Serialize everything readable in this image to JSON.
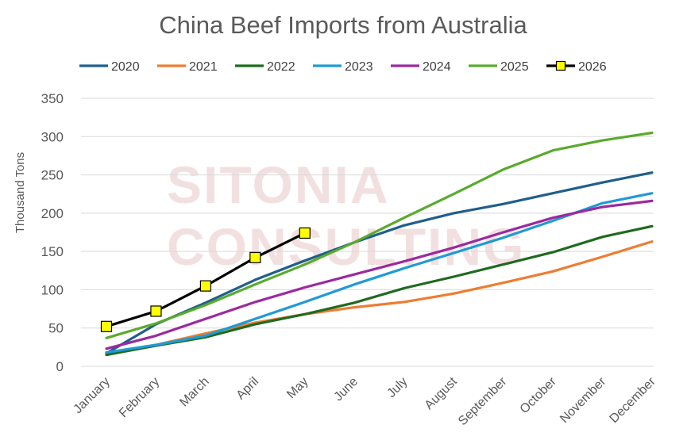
{
  "chart_data": {
    "type": "line",
    "title": "China Beef Imports from Australia",
    "ylabel": "Thousand Tons",
    "xlabel": "",
    "ylim": [
      0,
      350
    ],
    "yticks": [
      0,
      50,
      100,
      150,
      200,
      250,
      300,
      350
    ],
    "grid": true,
    "legend_position": "top",
    "watermark": [
      "SITONIA",
      "CONSULTING"
    ],
    "categories": [
      "January",
      "February",
      "March",
      "April",
      "May",
      "June",
      "July",
      "August",
      "September",
      "October",
      "November",
      "December"
    ],
    "series": [
      {
        "name": "2020",
        "color": "#1f5f8b",
        "marker": false,
        "values": [
          17,
          55,
          83,
          113,
          138,
          162,
          184,
          200,
          212,
          226,
          240,
          253
        ]
      },
      {
        "name": "2021",
        "color": "#ed7d31",
        "marker": false,
        "values": [
          15,
          28,
          43,
          57,
          68,
          77,
          84,
          95,
          109,
          124,
          143,
          163
        ]
      },
      {
        "name": "2022",
        "color": "#1e6b1e",
        "marker": false,
        "values": [
          15,
          27,
          38,
          55,
          68,
          83,
          102,
          117,
          133,
          149,
          169,
          183
        ]
      },
      {
        "name": "2023",
        "color": "#1f9ad6",
        "marker": false,
        "values": [
          18,
          28,
          40,
          62,
          84,
          107,
          128,
          148,
          168,
          190,
          213,
          226
        ]
      },
      {
        "name": "2024",
        "color": "#9b2a9e",
        "marker": false,
        "values": [
          23,
          40,
          62,
          84,
          103,
          120,
          137,
          155,
          175,
          194,
          208,
          216
        ]
      },
      {
        "name": "2025",
        "color": "#5aaa2e",
        "marker": false,
        "values": [
          37,
          56,
          80,
          107,
          133,
          162,
          194,
          225,
          257,
          282,
          295,
          305
        ]
      },
      {
        "name": "2026",
        "color": "#000000",
        "marker": true,
        "marker_fill": "#ffff00",
        "values": [
          52,
          72,
          105,
          142,
          174,
          null,
          null,
          null,
          null,
          null,
          null,
          null
        ]
      }
    ]
  }
}
